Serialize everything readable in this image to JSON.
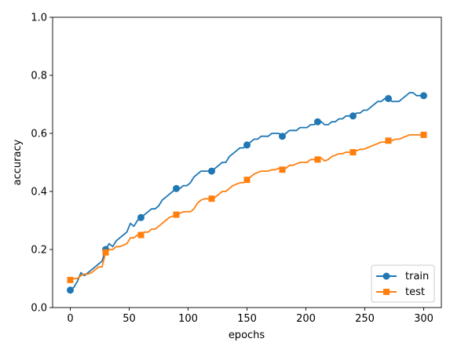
{
  "chart_data": {
    "type": "line",
    "xlabel": "epochs",
    "ylabel": "accuracy",
    "xlim": [
      -15,
      315
    ],
    "ylim": [
      0,
      1.0
    ],
    "xticks": [
      0,
      50,
      100,
      150,
      200,
      250,
      300
    ],
    "yticks": [
      0.0,
      0.2,
      0.4,
      0.6,
      0.8,
      1.0
    ],
    "xtick_labels": [
      "0",
      "50",
      "100",
      "150",
      "200",
      "250",
      "300"
    ],
    "ytick_labels": [
      "0.0",
      "0.2",
      "0.4",
      "0.6",
      "0.8",
      "1.0"
    ],
    "grid": false,
    "legend_position": "lower-right",
    "series": [
      {
        "name": "train",
        "color": "#1f77b4",
        "marker": "circle",
        "marker_every": 10,
        "x": [
          0,
          3,
          6,
          9,
          12,
          15,
          18,
          21,
          24,
          27,
          30,
          33,
          36,
          39,
          42,
          45,
          48,
          51,
          54,
          57,
          60,
          63,
          66,
          69,
          72,
          75,
          78,
          81,
          84,
          87,
          90,
          93,
          96,
          99,
          102,
          105,
          108,
          111,
          114,
          117,
          120,
          123,
          126,
          129,
          132,
          135,
          138,
          141,
          144,
          147,
          150,
          153,
          156,
          159,
          162,
          165,
          168,
          171,
          174,
          177,
          180,
          183,
          186,
          189,
          192,
          195,
          198,
          201,
          204,
          207,
          210,
          213,
          216,
          219,
          222,
          225,
          228,
          231,
          234,
          237,
          240,
          243,
          246,
          249,
          252,
          255,
          258,
          261,
          264,
          267,
          270,
          273,
          276,
          279,
          282,
          285,
          288,
          291,
          294,
          297,
          300
        ],
        "values": [
          0.06,
          0.07,
          0.09,
          0.12,
          0.11,
          0.12,
          0.13,
          0.14,
          0.15,
          0.16,
          0.2,
          0.22,
          0.21,
          0.23,
          0.24,
          0.25,
          0.26,
          0.29,
          0.28,
          0.3,
          0.31,
          0.32,
          0.33,
          0.34,
          0.34,
          0.35,
          0.37,
          0.38,
          0.39,
          0.4,
          0.41,
          0.41,
          0.42,
          0.42,
          0.43,
          0.45,
          0.46,
          0.47,
          0.47,
          0.47,
          0.47,
          0.48,
          0.49,
          0.5,
          0.5,
          0.52,
          0.53,
          0.54,
          0.55,
          0.55,
          0.56,
          0.57,
          0.58,
          0.58,
          0.59,
          0.59,
          0.59,
          0.6,
          0.6,
          0.6,
          0.59,
          0.6,
          0.61,
          0.61,
          0.61,
          0.62,
          0.62,
          0.62,
          0.63,
          0.63,
          0.64,
          0.64,
          0.63,
          0.63,
          0.64,
          0.64,
          0.65,
          0.65,
          0.66,
          0.66,
          0.66,
          0.67,
          0.67,
          0.68,
          0.68,
          0.69,
          0.7,
          0.71,
          0.71,
          0.72,
          0.72,
          0.71,
          0.71,
          0.71,
          0.72,
          0.73,
          0.74,
          0.74,
          0.73,
          0.73,
          0.73
        ]
      },
      {
        "name": "test",
        "color": "#ff7f0e",
        "marker": "square",
        "marker_every": 10,
        "x": [
          0,
          3,
          6,
          9,
          12,
          15,
          18,
          21,
          24,
          27,
          30,
          33,
          36,
          39,
          42,
          45,
          48,
          51,
          54,
          57,
          60,
          63,
          66,
          69,
          72,
          75,
          78,
          81,
          84,
          87,
          90,
          93,
          96,
          99,
          102,
          105,
          108,
          111,
          114,
          117,
          120,
          123,
          126,
          129,
          132,
          135,
          138,
          141,
          144,
          147,
          150,
          153,
          156,
          159,
          162,
          165,
          168,
          171,
          174,
          177,
          180,
          183,
          186,
          189,
          192,
          195,
          198,
          201,
          204,
          207,
          210,
          213,
          216,
          219,
          222,
          225,
          228,
          231,
          234,
          237,
          240,
          243,
          246,
          249,
          252,
          255,
          258,
          261,
          264,
          267,
          270,
          273,
          276,
          279,
          282,
          285,
          288,
          291,
          294,
          297,
          300
        ],
        "values": [
          0.095,
          0.1,
          0.1,
          0.11,
          0.115,
          0.115,
          0.12,
          0.13,
          0.14,
          0.14,
          0.19,
          0.2,
          0.2,
          0.21,
          0.21,
          0.215,
          0.22,
          0.24,
          0.24,
          0.25,
          0.25,
          0.26,
          0.26,
          0.27,
          0.27,
          0.28,
          0.29,
          0.3,
          0.31,
          0.315,
          0.32,
          0.325,
          0.33,
          0.33,
          0.33,
          0.34,
          0.36,
          0.37,
          0.375,
          0.375,
          0.375,
          0.38,
          0.39,
          0.4,
          0.4,
          0.41,
          0.42,
          0.425,
          0.43,
          0.43,
          0.44,
          0.45,
          0.46,
          0.465,
          0.47,
          0.47,
          0.47,
          0.475,
          0.475,
          0.48,
          0.475,
          0.48,
          0.49,
          0.49,
          0.495,
          0.5,
          0.5,
          0.5,
          0.51,
          0.51,
          0.51,
          0.515,
          0.505,
          0.51,
          0.52,
          0.525,
          0.53,
          0.53,
          0.535,
          0.535,
          0.535,
          0.54,
          0.545,
          0.545,
          0.55,
          0.555,
          0.56,
          0.565,
          0.57,
          0.57,
          0.575,
          0.575,
          0.58,
          0.58,
          0.585,
          0.59,
          0.595,
          0.595,
          0.595,
          0.595,
          0.595
        ]
      }
    ]
  }
}
